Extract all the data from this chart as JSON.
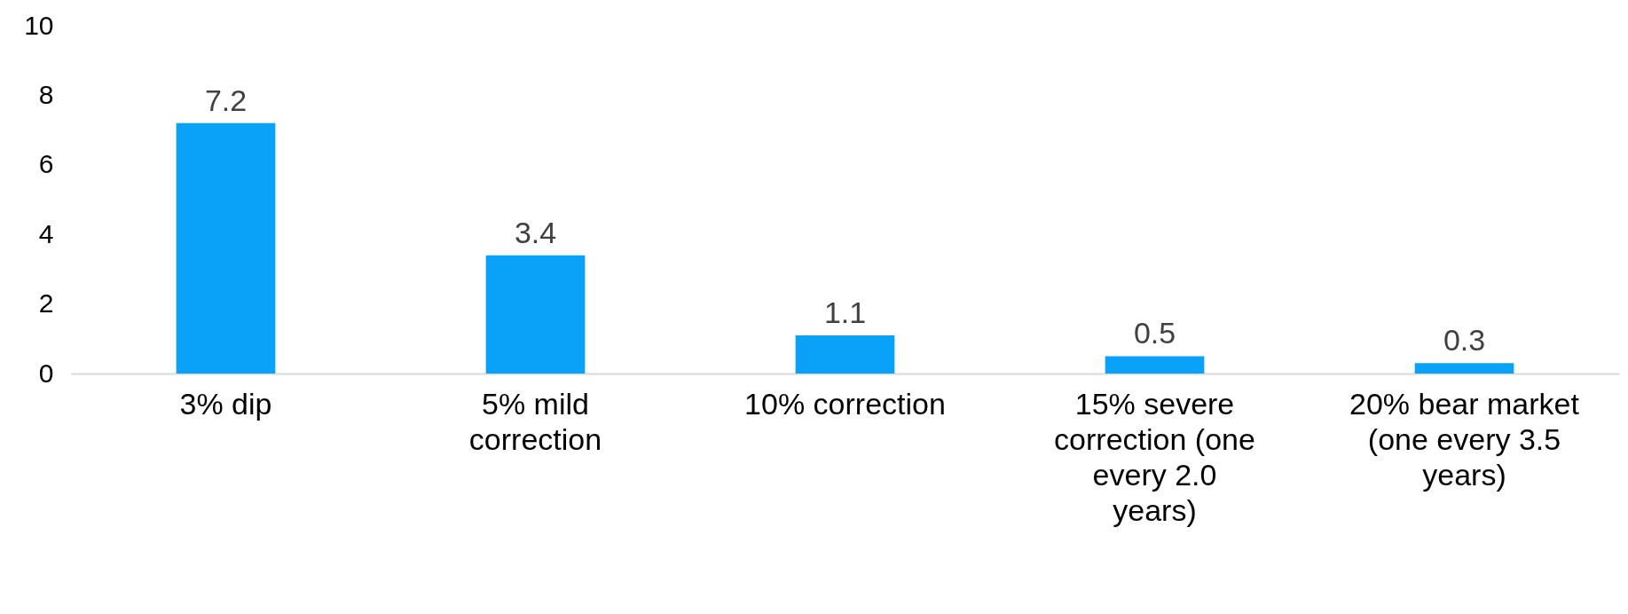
{
  "chart_data": {
    "type": "bar",
    "categories": [
      "3% dip",
      "5% mild correction",
      "10% correction",
      "15% severe correction (one every 2.0 years)",
      "20% bear market (one every 3.5 years)"
    ],
    "values": [
      7.2,
      3.4,
      1.1,
      0.5,
      0.3
    ],
    "color": "#0aa2f8",
    "ylim": [
      0,
      10
    ],
    "yticks": [
      0,
      2,
      4,
      6,
      8,
      10
    ],
    "data_labels": true,
    "grid": false
  }
}
